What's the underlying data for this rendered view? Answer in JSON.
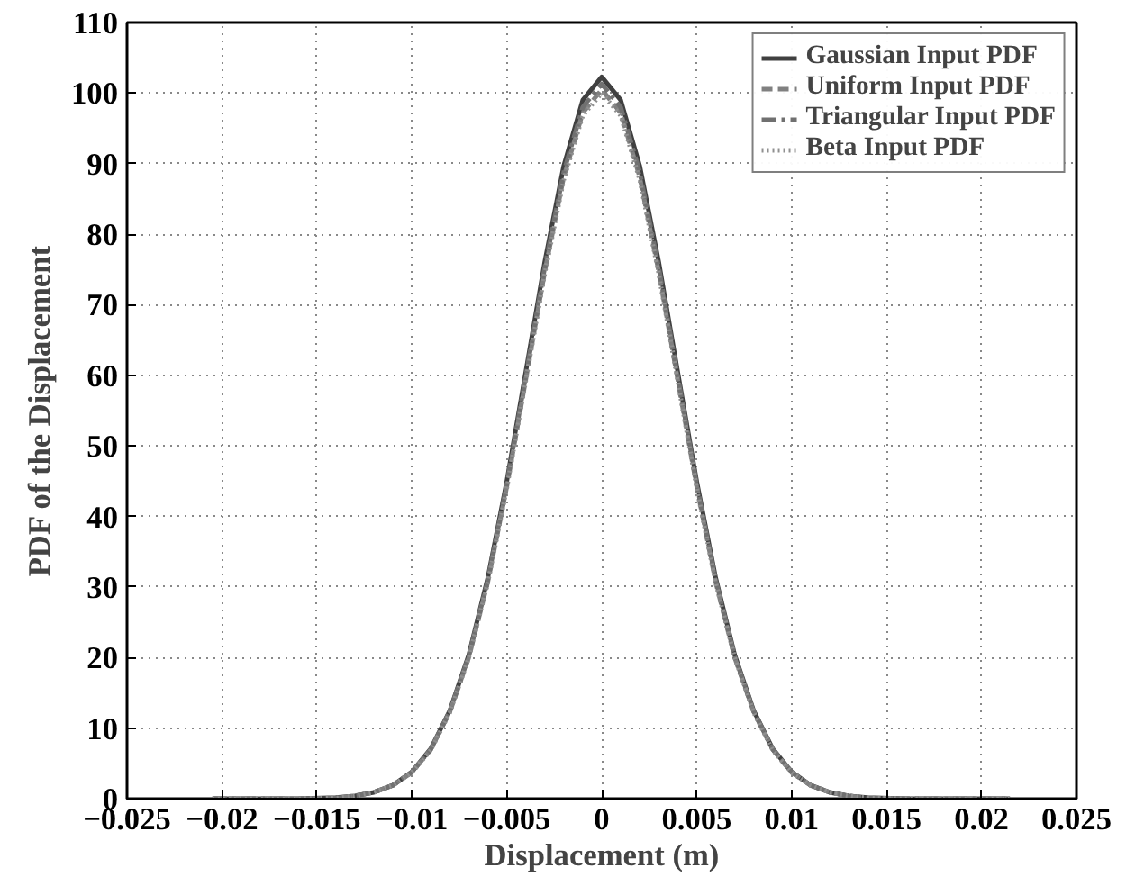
{
  "chart_data": {
    "type": "line",
    "xlabel": "Displacement (m)",
    "ylabel": "PDF of the Displacement",
    "x": [
      -0.0205,
      -0.016,
      -0.014,
      -0.013,
      -0.012,
      -0.011,
      -0.01,
      -0.009,
      -0.008,
      -0.007,
      -0.006,
      -0.005,
      -0.004,
      -0.003,
      -0.002,
      -0.001,
      0,
      0.001,
      0.002,
      0.003,
      0.004,
      0.005,
      0.006,
      0.007,
      0.008,
      0.009,
      0.01,
      0.011,
      0.012,
      0.013,
      0.014,
      0.016,
      0.0215
    ],
    "series": [
      {
        "name": "Gaussian Input PDF",
        "color": "#404040",
        "line_style": "solid",
        "values": [
          0,
          0,
          0.15,
          0.4,
          0.9,
          1.9,
          3.8,
          7.1,
          12.5,
          20.4,
          31.3,
          45,
          60.5,
          76.1,
          89.7,
          99,
          102.3,
          99,
          89.7,
          76.1,
          60.5,
          45,
          31.3,
          20.4,
          12.5,
          7.1,
          3.8,
          1.9,
          0.9,
          0.4,
          0.15,
          0,
          0
        ]
      },
      {
        "name": "Uniform Input PDF",
        "color": "#808080",
        "line_style": "dashed",
        "values": [
          0,
          0,
          0.1,
          0.4,
          0.9,
          1.9,
          3.7,
          7,
          12.3,
          20,
          30.7,
          44.2,
          59.4,
          74.7,
          88.1,
          97.2,
          100.5,
          97.2,
          88.1,
          74.7,
          59.4,
          44.2,
          30.7,
          20,
          12.3,
          7,
          3.7,
          1.9,
          0.9,
          0.4,
          0.1,
          0,
          0
        ]
      },
      {
        "name": "Triangular Input PDF",
        "color": "#707070",
        "line_style": "dashdot",
        "values": [
          0,
          0,
          0.1,
          0.4,
          0.9,
          1.9,
          3.8,
          7,
          12.4,
          20.2,
          31,
          44.6,
          59.9,
          75.3,
          88.8,
          98,
          101.3,
          98,
          88.8,
          75.3,
          59.9,
          44.6,
          31,
          20.2,
          12.4,
          7,
          3.8,
          1.9,
          0.9,
          0.4,
          0.1,
          0,
          0
        ]
      },
      {
        "name": "Beta Input PDF",
        "color": "#909090",
        "line_style": "dotted",
        "values": [
          0,
          0,
          0.1,
          0.4,
          0.9,
          1.9,
          3.7,
          6.9,
          12.2,
          20,
          30.6,
          44,
          59.2,
          74.4,
          87.7,
          96.8,
          100,
          96.8,
          87.7,
          74.4,
          59.2,
          44,
          30.6,
          20,
          12.2,
          6.9,
          3.7,
          1.9,
          0.9,
          0.4,
          0.1,
          0,
          0
        ]
      }
    ],
    "xlim": [
      -0.025,
      0.025
    ],
    "xticks": [
      {
        "value": -0.025,
        "label": "−0.025"
      },
      {
        "value": -0.02,
        "label": "−0.02"
      },
      {
        "value": -0.015,
        "label": "−0.015"
      },
      {
        "value": -0.01,
        "label": "−0.01"
      },
      {
        "value": -0.005,
        "label": "−0.005"
      },
      0,
      0.005,
      0.01,
      0.015,
      0.02,
      0.025
    ],
    "ylim": [
      0,
      110
    ],
    "yticks": [
      0,
      10,
      20,
      30,
      40,
      50,
      60,
      70,
      80,
      90,
      100,
      110
    ],
    "grid": true,
    "legend": "top right"
  }
}
